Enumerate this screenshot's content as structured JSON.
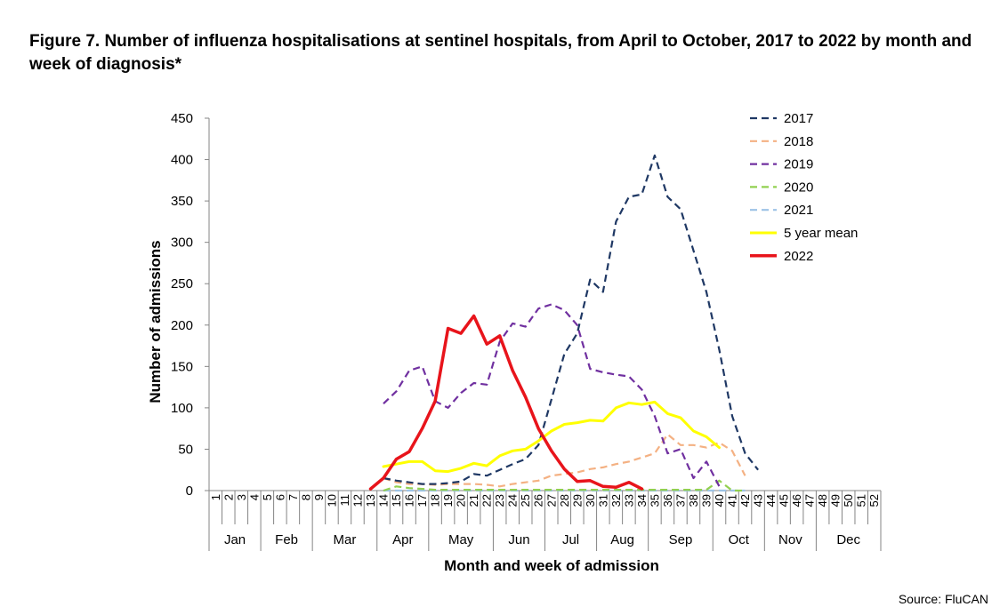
{
  "title": "Figure 7. Number of influenza hospitalisations at sentinel hospitals, from April to October, 2017 to 2022 by month and week of diagnosis*",
  "source": "Source: FluCAN",
  "chart_data": {
    "type": "line",
    "xlabel": "Month and week of admission",
    "ylabel": "Number of admissions",
    "ylim": [
      0,
      450
    ],
    "yticks": [
      0,
      50,
      100,
      150,
      200,
      250,
      300,
      350,
      400,
      450
    ],
    "x_weeks": [
      1,
      52
    ],
    "months": [
      {
        "label": "Jan",
        "start": 1,
        "end": 4
      },
      {
        "label": "Feb",
        "start": 5,
        "end": 8
      },
      {
        "label": "Mar",
        "start": 9,
        "end": 13
      },
      {
        "label": "Apr",
        "start": 14,
        "end": 17
      },
      {
        "label": "May",
        "start": 18,
        "end": 22
      },
      {
        "label": "Jun",
        "start": 23,
        "end": 26
      },
      {
        "label": "Jul",
        "start": 27,
        "end": 30
      },
      {
        "label": "Aug",
        "start": 31,
        "end": 34
      },
      {
        "label": "Sep",
        "start": 35,
        "end": 39
      },
      {
        "label": "Oct",
        "start": 40,
        "end": 43
      },
      {
        "label": "Nov",
        "start": 44,
        "end": 47
      },
      {
        "label": "Dec",
        "start": 48,
        "end": 52
      }
    ],
    "grid": false,
    "legend_position": "top-right",
    "series": [
      {
        "name": "2017",
        "color": "#1F3864",
        "dashed": true,
        "x": [
          14,
          15,
          16,
          17,
          18,
          19,
          20,
          21,
          22,
          23,
          24,
          25,
          26,
          27,
          28,
          29,
          30,
          31,
          32,
          33,
          34,
          35,
          36,
          37,
          38,
          39,
          40,
          41,
          42,
          43
        ],
        "values": [
          15,
          12,
          10,
          8,
          8,
          9,
          11,
          20,
          18,
          25,
          32,
          38,
          55,
          110,
          165,
          190,
          255,
          240,
          325,
          355,
          358,
          405,
          355,
          340,
          290,
          240,
          170,
          90,
          45,
          25
        ]
      },
      {
        "name": "2018",
        "color": "#F4B183",
        "dashed": true,
        "x": [
          14,
          15,
          16,
          17,
          18,
          19,
          20,
          21,
          22,
          23,
          24,
          25,
          26,
          27,
          28,
          29,
          30,
          31,
          32,
          33,
          34,
          35,
          36,
          37,
          38,
          39,
          40,
          41,
          42
        ],
        "values": [
          15,
          10,
          8,
          8,
          7,
          8,
          8,
          8,
          7,
          5,
          8,
          10,
          12,
          18,
          20,
          22,
          26,
          28,
          32,
          35,
          40,
          45,
          68,
          55,
          55,
          52,
          58,
          48,
          18
        ]
      },
      {
        "name": "2019",
        "color": "#7030A0",
        "dashed": true,
        "x": [
          14,
          15,
          16,
          17,
          18,
          19,
          20,
          21,
          22,
          23,
          24,
          25,
          26,
          27,
          28,
          29,
          30,
          31,
          32,
          33,
          34,
          35,
          36,
          37,
          38,
          39,
          40
        ],
        "values": [
          105,
          120,
          145,
          150,
          108,
          100,
          118,
          130,
          128,
          180,
          202,
          198,
          220,
          225,
          218,
          200,
          147,
          143,
          140,
          138,
          122,
          90,
          45,
          50,
          15,
          35,
          5
        ]
      },
      {
        "name": "2020",
        "color": "#92D050",
        "dashed": true,
        "x": [
          14,
          15,
          16,
          17,
          18,
          19,
          20,
          21,
          22,
          23,
          24,
          25,
          26,
          27,
          28,
          29,
          30,
          31,
          32,
          33,
          34,
          35,
          36,
          37,
          38,
          39,
          40,
          41,
          42
        ],
        "values": [
          0,
          5,
          3,
          2,
          1,
          1,
          1,
          1,
          1,
          1,
          1,
          1,
          1,
          1,
          1,
          1,
          1,
          1,
          1,
          1,
          1,
          1,
          1,
          1,
          1,
          1,
          12,
          0,
          0
        ]
      },
      {
        "name": "2021",
        "color": "#9DC3E6",
        "dashed": true,
        "x": [
          14,
          15,
          16,
          17,
          18,
          19,
          20,
          21,
          22,
          23,
          24,
          25,
          26,
          27,
          28,
          29,
          30,
          31,
          32,
          33,
          34,
          35,
          36,
          37,
          38,
          39,
          40,
          41,
          42
        ],
        "values": [
          0,
          0,
          0,
          0,
          0,
          0,
          0,
          0,
          0,
          0,
          0,
          0,
          0,
          0,
          0,
          0,
          0,
          0,
          0,
          0,
          0,
          0,
          0,
          0,
          0,
          0,
          0,
          0,
          0
        ]
      },
      {
        "name": "5 year mean",
        "color": "#FFFF00",
        "dashed": false,
        "x": [
          14,
          15,
          16,
          17,
          18,
          19,
          20,
          21,
          22,
          23,
          24,
          25,
          26,
          27,
          28,
          29,
          30,
          31,
          32,
          33,
          34,
          35,
          36,
          37,
          38,
          39,
          40
        ],
        "values": [
          29,
          32,
          35,
          35,
          24,
          23,
          27,
          33,
          30,
          42,
          48,
          50,
          60,
          72,
          80,
          82,
          85,
          84,
          100,
          106,
          104,
          107,
          93,
          88,
          72,
          65,
          52
        ]
      },
      {
        "name": "2022",
        "color": "#E8141B",
        "dashed": false,
        "x": [
          13,
          14,
          15,
          16,
          17,
          18,
          19,
          20,
          21,
          22,
          23,
          24,
          25,
          26,
          27,
          28,
          29,
          30,
          31,
          32,
          33,
          34
        ],
        "values": [
          2,
          15,
          38,
          47,
          75,
          108,
          196,
          190,
          211,
          177,
          187,
          145,
          113,
          75,
          48,
          26,
          11,
          12,
          5,
          4,
          10,
          2
        ]
      }
    ]
  }
}
